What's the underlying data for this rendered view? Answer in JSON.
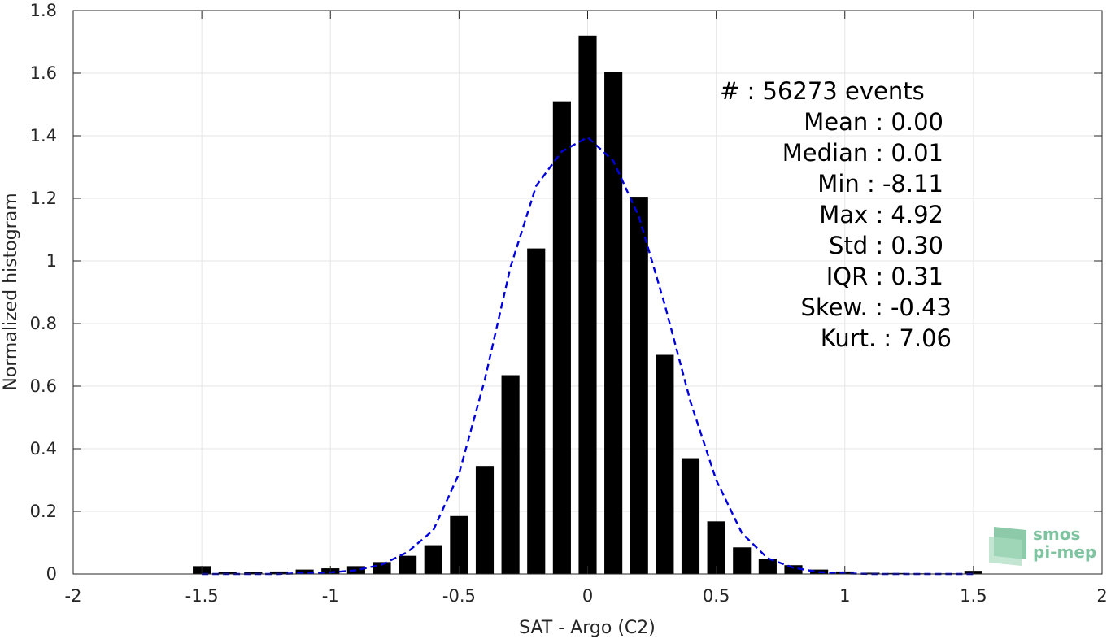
{
  "chart_data": {
    "type": "bar",
    "xlabel": "SAT - Argo (C2)",
    "ylabel": "Normalized histogram",
    "xlim": [
      -2,
      2
    ],
    "ylim": [
      0,
      1.8
    ],
    "xticks": [
      -2,
      -1.5,
      -1,
      -0.5,
      0,
      0.5,
      1,
      1.5,
      2
    ],
    "xtick_labels": [
      "-2",
      "-1.5",
      "-1",
      "-0.5",
      "0",
      "0.5",
      "1",
      "1.5",
      "2"
    ],
    "yticks": [
      0,
      0.2,
      0.4,
      0.6,
      0.8,
      1,
      1.2,
      1.4,
      1.6,
      1.8
    ],
    "ytick_labels": [
      "0",
      "0.2",
      "0.4",
      "0.6",
      "0.8",
      "1",
      "1.2",
      "1.4",
      "1.6",
      "1.8"
    ],
    "grid": true,
    "bar_width": 0.07,
    "series": [
      {
        "type": "bar",
        "color": "#000000",
        "x": [
          -1.5,
          -1.4,
          -1.3,
          -1.2,
          -1.1,
          -1.0,
          -0.9,
          -0.8,
          -0.7,
          -0.6,
          -0.5,
          -0.4,
          -0.3,
          -0.2,
          -0.1,
          0.0,
          0.1,
          0.2,
          0.3,
          0.4,
          0.5,
          0.6,
          0.7,
          0.8,
          0.9,
          1.0,
          1.1,
          1.2,
          1.3,
          1.4,
          1.5
        ],
        "values": [
          0.025,
          0.006,
          0.006,
          0.008,
          0.014,
          0.018,
          0.025,
          0.038,
          0.058,
          0.092,
          0.185,
          0.345,
          0.635,
          1.04,
          1.51,
          1.72,
          1.605,
          1.205,
          0.7,
          0.37,
          0.168,
          0.085,
          0.048,
          0.028,
          0.014,
          0.008,
          0.004,
          0.003,
          0.002,
          0.002,
          0.01
        ]
      },
      {
        "type": "line",
        "style": "dashed",
        "color": "#0000dd",
        "x": [
          -1.5,
          -1.4,
          -1.3,
          -1.2,
          -1.1,
          -1.0,
          -0.9,
          -0.8,
          -0.7,
          -0.6,
          -0.5,
          -0.4,
          -0.3,
          -0.2,
          -0.1,
          0.0,
          0.1,
          0.2,
          0.3,
          0.4,
          0.5,
          0.6,
          0.7,
          0.8,
          0.9,
          1.0,
          1.1,
          1.2,
          1.3,
          1.4,
          1.5
        ],
        "values": [
          0.0,
          0.0,
          0.0,
          0.0,
          0.003,
          0.005,
          0.012,
          0.03,
          0.07,
          0.14,
          0.32,
          0.62,
          0.98,
          1.24,
          1.35,
          1.395,
          1.32,
          1.14,
          0.86,
          0.55,
          0.3,
          0.13,
          0.05,
          0.02,
          0.006,
          0.002,
          0.0,
          0.0,
          0.0,
          0.0,
          0.0
        ]
      }
    ],
    "annotations": [
      "#  : 56273 events",
      "Mean : 0.00",
      "Median : 0.01",
      "Min : -8.11",
      "Max : 4.92",
      "Std : 0.30",
      "IQR : 0.31",
      "Skew. : -0.43",
      "Kurt. : 7.06"
    ]
  },
  "logo": {
    "line1": "smos",
    "line2": "pi-mep",
    "color": "#7fc4a0"
  }
}
